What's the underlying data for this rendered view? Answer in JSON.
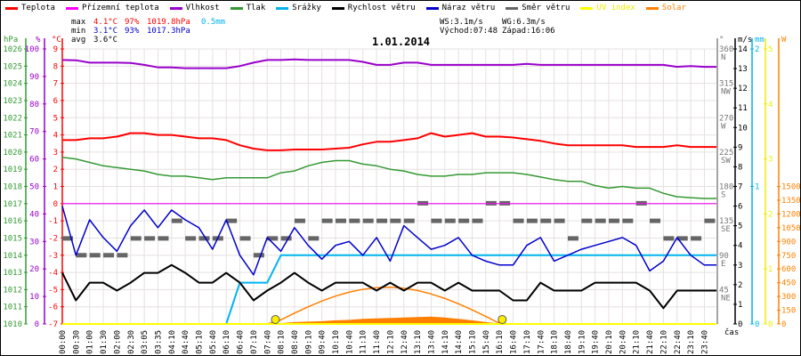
{
  "legend": [
    {
      "label": "Teplota",
      "color": "#ff0000"
    },
    {
      "label": "Přízemní teplota",
      "color": "#ff00ff"
    },
    {
      "label": "Vlhkost",
      "color": "#9900cc"
    },
    {
      "label": "Tlak",
      "color": "#339933"
    },
    {
      "label": "Srážky",
      "color": "#00b4ee"
    },
    {
      "label": "Rychlost větru",
      "color": "#000000"
    },
    {
      "label": "Náraz větru",
      "color": "#0000cc"
    },
    {
      "label": "Směr větru",
      "color": "#666666"
    },
    {
      "label": "UV index",
      "color": "#ffff00"
    },
    {
      "label": "Solar",
      "color": "#ff8000"
    }
  ],
  "stats": {
    "max_label": "max",
    "max_temp": "4.1°C",
    "max_hum": "97%",
    "max_press": "1019.8hPa",
    "max_rain": "0.5mm",
    "min_label": "min",
    "min_temp": "3.1°C",
    "min_hum": "93%",
    "min_press": "1017.3hPa",
    "avg_label": "avg",
    "avg_temp": "3.6°C",
    "ws": "WS:3.1m/s",
    "wg": "WG:6.3m/s",
    "sunrise": "Východ:07:48",
    "sunset": "Západ:16:06"
  },
  "title": "1.01.2014",
  "chart_data": {
    "type": "line",
    "title": "1.01.2014",
    "xlabel": "čas",
    "x": [
      "00:00",
      "00:30",
      "01:00",
      "01:30",
      "02:00",
      "02:30",
      "03:05",
      "03:35",
      "04:10",
      "04:40",
      "05:10",
      "05:40",
      "06:10",
      "06:40",
      "07:10",
      "07:40",
      "08:10",
      "08:40",
      "09:10",
      "09:40",
      "10:10",
      "10:40",
      "11:10",
      "11:40",
      "12:10",
      "12:40",
      "13:10",
      "13:40",
      "14:10",
      "14:40",
      "15:10",
      "15:40",
      "16:10",
      "16:40",
      "17:10",
      "17:40",
      "18:10",
      "18:40",
      "19:10",
      "19:40",
      "20:10",
      "20:40",
      "21:10",
      "21:40",
      "22:10",
      "22:40",
      "23:10",
      "23:40"
    ],
    "axes": {
      "pressure": {
        "unit": "hPa",
        "range": [
          1010,
          1026
        ],
        "ticks": [
          1026,
          1025,
          1024,
          1023,
          1022,
          1021,
          1020,
          1019,
          1018,
          1017,
          1016,
          1015,
          1014,
          1013,
          1012,
          1011,
          1010
        ],
        "color": "#339933"
      },
      "humidity": {
        "unit": "%",
        "range": [
          0,
          100
        ],
        "ticks": [
          100,
          90,
          80,
          70,
          60,
          50,
          40,
          30,
          20,
          10,
          0
        ],
        "color": "#9900cc"
      },
      "temperature": {
        "unit": "°C",
        "range": [
          -7,
          9
        ],
        "ticks": [
          9,
          8,
          7,
          6,
          5,
          4,
          3,
          2,
          1,
          0,
          -1,
          -2,
          -3,
          -4,
          -5,
          -6,
          -7
        ],
        "color": "#ff0000"
      },
      "direction": {
        "unit": "°",
        "range": [
          0,
          360
        ],
        "ticks": [
          360,
          315,
          270,
          225,
          180,
          135,
          90,
          45
        ],
        "compass": [
          "N",
          "NW",
          "W",
          "SW",
          "S",
          "SE",
          "E",
          "NE"
        ],
        "color": "#777777"
      },
      "wind": {
        "unit": "m/s",
        "range": [
          0,
          14
        ],
        "ticks": [
          14,
          13,
          12,
          11,
          10,
          9,
          8,
          7,
          6,
          5,
          4,
          3,
          2,
          1,
          0
        ],
        "color": "#000000"
      },
      "rain": {
        "unit": "mm",
        "range": [
          0,
          2
        ],
        "ticks": [
          2,
          1,
          0
        ],
        "color": "#00b4ee"
      },
      "uv": {
        "unit": "",
        "range": [
          0,
          5
        ],
        "ticks": [
          5,
          4,
          3,
          2,
          1,
          0
        ],
        "color": "#eeee00"
      },
      "solar": {
        "unit": "W",
        "range": [
          0,
          3000
        ],
        "ticks": [
          1500,
          1350,
          1200,
          1050,
          900,
          750,
          600,
          450,
          300,
          150,
          0
        ],
        "color": "#ff8000"
      }
    },
    "series": [
      {
        "name": "Teplota",
        "axis": "temperature",
        "color": "#ff0000",
        "values": [
          3.7,
          3.7,
          3.8,
          3.8,
          3.9,
          4.1,
          4.1,
          4.0,
          4.0,
          3.9,
          3.8,
          3.8,
          3.7,
          3.4,
          3.2,
          3.1,
          3.1,
          3.15,
          3.15,
          3.15,
          3.2,
          3.25,
          3.45,
          3.6,
          3.6,
          3.7,
          3.8,
          4.1,
          3.9,
          4.0,
          4.1,
          3.9,
          3.9,
          3.85,
          3.75,
          3.65,
          3.5,
          3.4,
          3.4,
          3.4,
          3.4,
          3.4,
          3.3,
          3.3,
          3.3,
          3.4,
          3.3,
          3.3
        ]
      },
      {
        "name": "Přízemní teplota",
        "axis": "temperature",
        "color": "#ff00ff",
        "values": [
          0,
          0,
          0,
          0,
          0,
          0,
          0,
          0,
          0,
          0,
          0,
          0,
          0,
          0,
          0,
          0,
          0,
          0,
          0,
          0,
          0,
          0,
          0,
          0,
          0,
          0,
          0,
          0,
          0,
          0,
          0,
          0,
          0,
          0,
          0,
          0,
          0,
          0,
          0,
          0,
          0,
          0,
          0,
          0,
          0,
          0,
          0,
          0
        ]
      },
      {
        "name": "Vlhkost",
        "axis": "humidity",
        "color": "#9900cc",
        "values": [
          96,
          95.9,
          95,
          95,
          95,
          94.9,
          94.2,
          93.3,
          93.3,
          93,
          93,
          93,
          93,
          93.8,
          95,
          96,
          96,
          96.2,
          96,
          96,
          96,
          96,
          95.3,
          94.2,
          94.2,
          95,
          95,
          94.2,
          94.2,
          94.2,
          94.2,
          94.2,
          94.2,
          94.2,
          94.6,
          94.2,
          94.2,
          94.2,
          94.2,
          94.2,
          94.2,
          94.2,
          94.2,
          94.2,
          94.2,
          93.5,
          93.8,
          93.5
        ]
      },
      {
        "name": "Tlak",
        "axis": "pressure",
        "color": "#339933",
        "values": [
          1019.7,
          1019.6,
          1019.4,
          1019.2,
          1019.1,
          1019.0,
          1018.9,
          1018.7,
          1018.6,
          1018.6,
          1018.5,
          1018.4,
          1018.5,
          1018.5,
          1018.5,
          1018.5,
          1018.8,
          1018.9,
          1019.2,
          1019.4,
          1019.5,
          1019.5,
          1019.3,
          1019.2,
          1019.0,
          1018.9,
          1018.7,
          1018.6,
          1018.6,
          1018.7,
          1018.7,
          1018.8,
          1018.8,
          1018.8,
          1018.7,
          1018.55,
          1018.4,
          1018.3,
          1018.3,
          1018.05,
          1017.9,
          1018.0,
          1017.9,
          1017.9,
          1017.6,
          1017.4,
          1017.35,
          1017.3
        ]
      },
      {
        "name": "Srážky",
        "axis": "rain",
        "color": "#00b4ee",
        "values": [
          0,
          0,
          0,
          0,
          0,
          0,
          0,
          0,
          0,
          0,
          0,
          0,
          0,
          0.3,
          0.3,
          0.3,
          0.5,
          0.5,
          0.5,
          0.5,
          0.5,
          0.5,
          0.5,
          0.5,
          0.5,
          0.5,
          0.5,
          0.5,
          0.5,
          0.5,
          0.5,
          0.5,
          0.5,
          0.5,
          0.5,
          0.5,
          0.5,
          0.5,
          0.5,
          0.5,
          0.5,
          0.5,
          0.5,
          0.5,
          0.5,
          0.5,
          0.5,
          0.5
        ]
      },
      {
        "name": "Rychlost větru",
        "axis": "wind",
        "color": "#000000",
        "values": [
          2.6,
          1.2,
          2.1,
          2.1,
          1.7,
          2.1,
          2.6,
          2.6,
          3.0,
          2.6,
          2.1,
          2.1,
          2.6,
          2.1,
          1.2,
          1.7,
          2.1,
          2.6,
          2.1,
          1.7,
          2.1,
          2.1,
          2.1,
          1.7,
          2.1,
          1.7,
          2.1,
          2.1,
          1.7,
          2.1,
          1.7,
          1.7,
          1.7,
          1.2,
          1.2,
          2.1,
          1.7,
          1.7,
          1.7,
          2.1,
          2.1,
          2.1,
          2.1,
          1.7,
          0.8,
          1.7,
          1.7,
          1.7
        ]
      },
      {
        "name": "Náraz větru",
        "axis": "wind",
        "color": "#0000cc",
        "values": [
          6.0,
          3.5,
          5.3,
          4.4,
          3.7,
          5.0,
          5.8,
          4.9,
          5.8,
          5.3,
          4.9,
          3.8,
          5.3,
          3.5,
          2.5,
          4.4,
          3.7,
          4.9,
          4.0,
          3.3,
          4.0,
          4.2,
          3.5,
          4.4,
          3.2,
          5.0,
          4.4,
          3.8,
          4.0,
          4.4,
          3.5,
          3.2,
          3.0,
          3.0,
          4.0,
          4.4,
          3.2,
          3.5,
          3.8,
          4.0,
          4.2,
          4.4,
          4.0,
          2.7,
          3.2,
          4.4,
          3.5,
          3.0
        ]
      },
      {
        "name": "Směr větru",
        "axis": "direction",
        "color": "#666666",
        "values": [
          112,
          90,
          90,
          90,
          90,
          112,
          112,
          112,
          135,
          112,
          112,
          112,
          135,
          112,
          90,
          112,
          112,
          135,
          112,
          135,
          135,
          135,
          135,
          135,
          135,
          135,
          158,
          135,
          135,
          135,
          135,
          158,
          158,
          135,
          135,
          135,
          135,
          112,
          135,
          135,
          135,
          135,
          158,
          135,
          112,
          112,
          112,
          135
        ]
      },
      {
        "name": "UV index",
        "axis": "uv",
        "color": "#ffff00",
        "values": [
          0,
          0,
          0,
          0,
          0,
          0,
          0,
          0,
          0,
          0,
          0,
          0,
          0,
          0,
          0,
          0,
          0,
          0,
          0,
          0,
          0,
          0,
          0,
          0,
          0,
          0,
          0,
          0,
          0,
          0,
          0,
          0,
          0,
          0,
          0,
          0,
          0,
          0,
          0,
          0,
          0,
          0,
          0,
          0,
          0,
          0,
          0,
          0
        ]
      },
      {
        "name": "Solar",
        "axis": "solar",
        "color": "#ff8000",
        "values": [
          0,
          0,
          0,
          0,
          0,
          0,
          0,
          0,
          0,
          0,
          0,
          0,
          0,
          0,
          0,
          0,
          10,
          20,
          25,
          30,
          40,
          45,
          55,
          60,
          65,
          70,
          75,
          80,
          70,
          55,
          40,
          20,
          5,
          0,
          0,
          0,
          0,
          0,
          0,
          0,
          0,
          0,
          0,
          0,
          0,
          0,
          0,
          0
        ]
      },
      {
        "name": "Solar max",
        "axis": "solar",
        "color": "#ff8000",
        "values": [
          0,
          0,
          0,
          0,
          0,
          0,
          0,
          0,
          0,
          0,
          0,
          0,
          0,
          0,
          0,
          0,
          45,
          118,
          188,
          251,
          304,
          347,
          378,
          396,
          400,
          389,
          365,
          327,
          279,
          220,
          154,
          82,
          7,
          0,
          0,
          0,
          0,
          0,
          0,
          0,
          0,
          0,
          0,
          0,
          0,
          0,
          0,
          0
        ]
      }
    ],
    "sun_markers": [
      15.6,
      32.2
    ],
    "grid": true
  }
}
